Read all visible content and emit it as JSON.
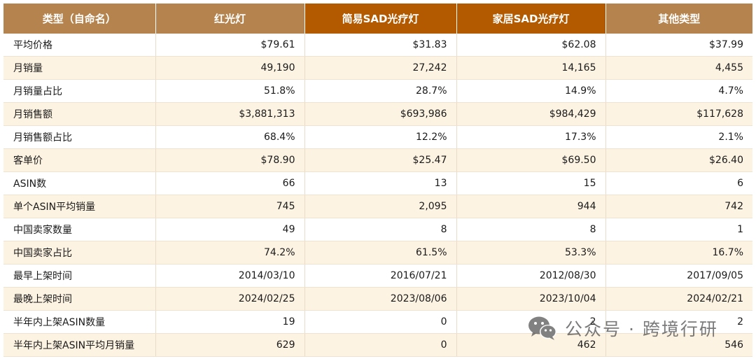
{
  "table": {
    "headers": [
      "类型（自命名）",
      "红光灯",
      "简易SAD光疗灯",
      "家居SAD光疗灯",
      "其他类型"
    ],
    "rows": [
      [
        "平均价格",
        "$79.61",
        "$31.83",
        "$62.08",
        "$37.99"
      ],
      [
        "月销量",
        "49,190",
        "27,242",
        "14,165",
        "4,455"
      ],
      [
        "月销量占比",
        "51.8%",
        "28.7%",
        "14.9%",
        "4.7%"
      ],
      [
        "月销售额",
        "$3,881,313",
        "$693,986",
        "$984,429",
        "$117,628"
      ],
      [
        "月销售额占比",
        "68.4%",
        "12.2%",
        "17.3%",
        "2.1%"
      ],
      [
        "客单价",
        "$78.90",
        "$25.47",
        "$69.50",
        "$26.40"
      ],
      [
        "ASIN数",
        "66",
        "13",
        "15",
        "6"
      ],
      [
        "单个ASIN平均销量",
        "745",
        "2,095",
        "944",
        "742"
      ],
      [
        "中国卖家数量",
        "49",
        "8",
        "8",
        "1"
      ],
      [
        "中国卖家占比",
        "74.2%",
        "61.5%",
        "53.3%",
        "16.7%"
      ],
      [
        "最早上架时间",
        "2014/03/10",
        "2016/07/21",
        "2012/08/30",
        "2017/09/05"
      ],
      [
        "最晚上架时间",
        "2024/02/25",
        "2023/08/06",
        "2023/10/04",
        "2024/02/21"
      ],
      [
        "半年内上架ASIN数量",
        "19",
        "0",
        "2",
        "2"
      ],
      [
        "半年内上架ASIN平均月销量",
        "629",
        "0",
        "462",
        "546"
      ]
    ]
  },
  "watermark": {
    "text": "公众号 · 跨境行研",
    "icon": "wechat-icon"
  },
  "colors": {
    "header_bg": "#b5834d",
    "header_highlight_bg": "#b35a00",
    "row_alt_bg": "#fdf3e2"
  }
}
